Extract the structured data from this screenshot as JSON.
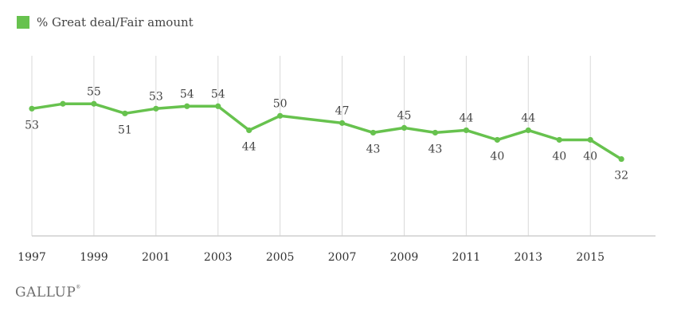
{
  "legend": {
    "label": "% Great deal/Fair amount",
    "color": "#67c24e"
  },
  "logo": {
    "text": "GALLUP"
  },
  "chart_data": {
    "type": "line",
    "title": "",
    "xlabel": "",
    "ylabel": "",
    "x": [
      1997,
      1998,
      1999,
      2000,
      2001,
      2002,
      2003,
      2004,
      2005,
      2007,
      2008,
      2009,
      2010,
      2011,
      2012,
      2013,
      2014,
      2015,
      2016
    ],
    "series": [
      {
        "name": "% Great deal/Fair amount",
        "color": "#67c24e",
        "values": [
          53,
          55,
          55,
          51,
          53,
          54,
          54,
          44,
          50,
          47,
          43,
          45,
          43,
          44,
          40,
          44,
          40,
          40,
          32
        ]
      }
    ],
    "data_labels": [
      {
        "x": 1997,
        "text": "53",
        "pos": "below"
      },
      {
        "x": 1999,
        "text": "55",
        "pos": "above"
      },
      {
        "x": 2000,
        "text": "51",
        "pos": "below"
      },
      {
        "x": 2001,
        "text": "53",
        "pos": "above"
      },
      {
        "x": 2002,
        "text": "54",
        "pos": "above"
      },
      {
        "x": 2003,
        "text": "54",
        "pos": "above"
      },
      {
        "x": 2004,
        "text": "44",
        "pos": "below"
      },
      {
        "x": 2005,
        "text": "50",
        "pos": "above"
      },
      {
        "x": 2007,
        "text": "47",
        "pos": "above"
      },
      {
        "x": 2008,
        "text": "43",
        "pos": "below"
      },
      {
        "x": 2009,
        "text": "45",
        "pos": "above"
      },
      {
        "x": 2010,
        "text": "43",
        "pos": "below"
      },
      {
        "x": 2011,
        "text": "44",
        "pos": "above"
      },
      {
        "x": 2012,
        "text": "40",
        "pos": "below"
      },
      {
        "x": 2013,
        "text": "44",
        "pos": "above"
      },
      {
        "x": 2014,
        "text": "40",
        "pos": "below"
      },
      {
        "x": 2015,
        "text": "40",
        "pos": "below"
      },
      {
        "x": 2016,
        "text": "32",
        "pos": "below"
      }
    ],
    "x_ticks": [
      1997,
      1999,
      2001,
      2003,
      2005,
      2007,
      2009,
      2011,
      2013,
      2015
    ],
    "x_tick_labels": [
      "1997",
      "1999",
      "2001",
      "2003",
      "2005",
      "2007",
      "2009",
      "2011",
      "2013",
      "2015"
    ],
    "xlim": [
      1997,
      2017.1
    ],
    "ylim": [
      0,
      75
    ],
    "grid": "vertical",
    "grid_color": "#d9d9d9",
    "axis_color": "#cfcfcf",
    "legend_position": "top-left"
  }
}
